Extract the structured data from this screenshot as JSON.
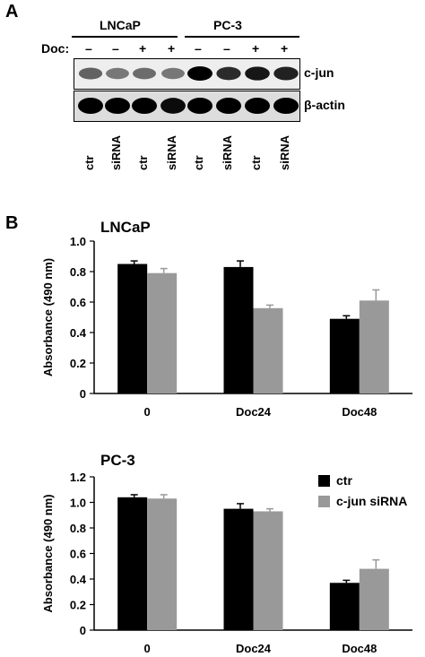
{
  "panel_a": {
    "letter": "A",
    "cell_lines": [
      "LNCaP",
      "PC-3"
    ],
    "doc_label": "Doc:",
    "doc_marks": [
      "–",
      "–",
      "+",
      "+",
      "–",
      "–",
      "+",
      "+"
    ],
    "bands": [
      "c-jun",
      "β-actin"
    ],
    "lanes": [
      "ctr",
      "siRNA",
      "ctr",
      "siRNA",
      "ctr",
      "siRNA",
      "ctr",
      "siRNA"
    ],
    "cjun_intensity": [
      0.55,
      0.45,
      0.5,
      0.45,
      1.0,
      0.8,
      0.9,
      0.85
    ],
    "actin_intensity": [
      1.0,
      1.0,
      1.0,
      0.95,
      1.0,
      1.0,
      1.0,
      1.0
    ]
  },
  "panel_b": {
    "letter": "B",
    "legend": [
      {
        "label": "ctr",
        "color": "#000000"
      },
      {
        "label": "c-jun siRNA",
        "color": "#999999"
      }
    ]
  },
  "chart_data": [
    {
      "type": "bar",
      "title": "LNCaP",
      "ylabel": "Absorbance (490 nm)",
      "categories": [
        "0",
        "Doc24",
        "Doc48"
      ],
      "ylim": [
        0,
        1.0
      ],
      "yticks": [
        "0",
        "0.2",
        "0.4",
        "0.6",
        "0.8",
        "1.0"
      ],
      "series": [
        {
          "name": "ctr",
          "color": "#000000",
          "values": [
            0.85,
            0.83,
            0.49
          ],
          "errors": [
            0.02,
            0.04,
            0.02
          ]
        },
        {
          "name": "c-jun siRNA",
          "color": "#999999",
          "values": [
            0.79,
            0.56,
            0.61
          ],
          "errors": [
            0.03,
            0.02,
            0.07
          ]
        }
      ]
    },
    {
      "type": "bar",
      "title": "PC-3",
      "ylabel": "Absorbance (490 nm)",
      "categories": [
        "0",
        "Doc24",
        "Doc48"
      ],
      "ylim": [
        0,
        1.2
      ],
      "yticks": [
        "0",
        "0.2",
        "0.4",
        "0.6",
        "0.8",
        "1.0",
        "1.2"
      ],
      "series": [
        {
          "name": "ctr",
          "color": "#000000",
          "values": [
            1.04,
            0.95,
            0.37
          ],
          "errors": [
            0.02,
            0.04,
            0.02
          ]
        },
        {
          "name": "c-jun siRNA",
          "color": "#999999",
          "values": [
            1.03,
            0.93,
            0.48
          ],
          "errors": [
            0.03,
            0.02,
            0.07
          ]
        }
      ]
    }
  ]
}
